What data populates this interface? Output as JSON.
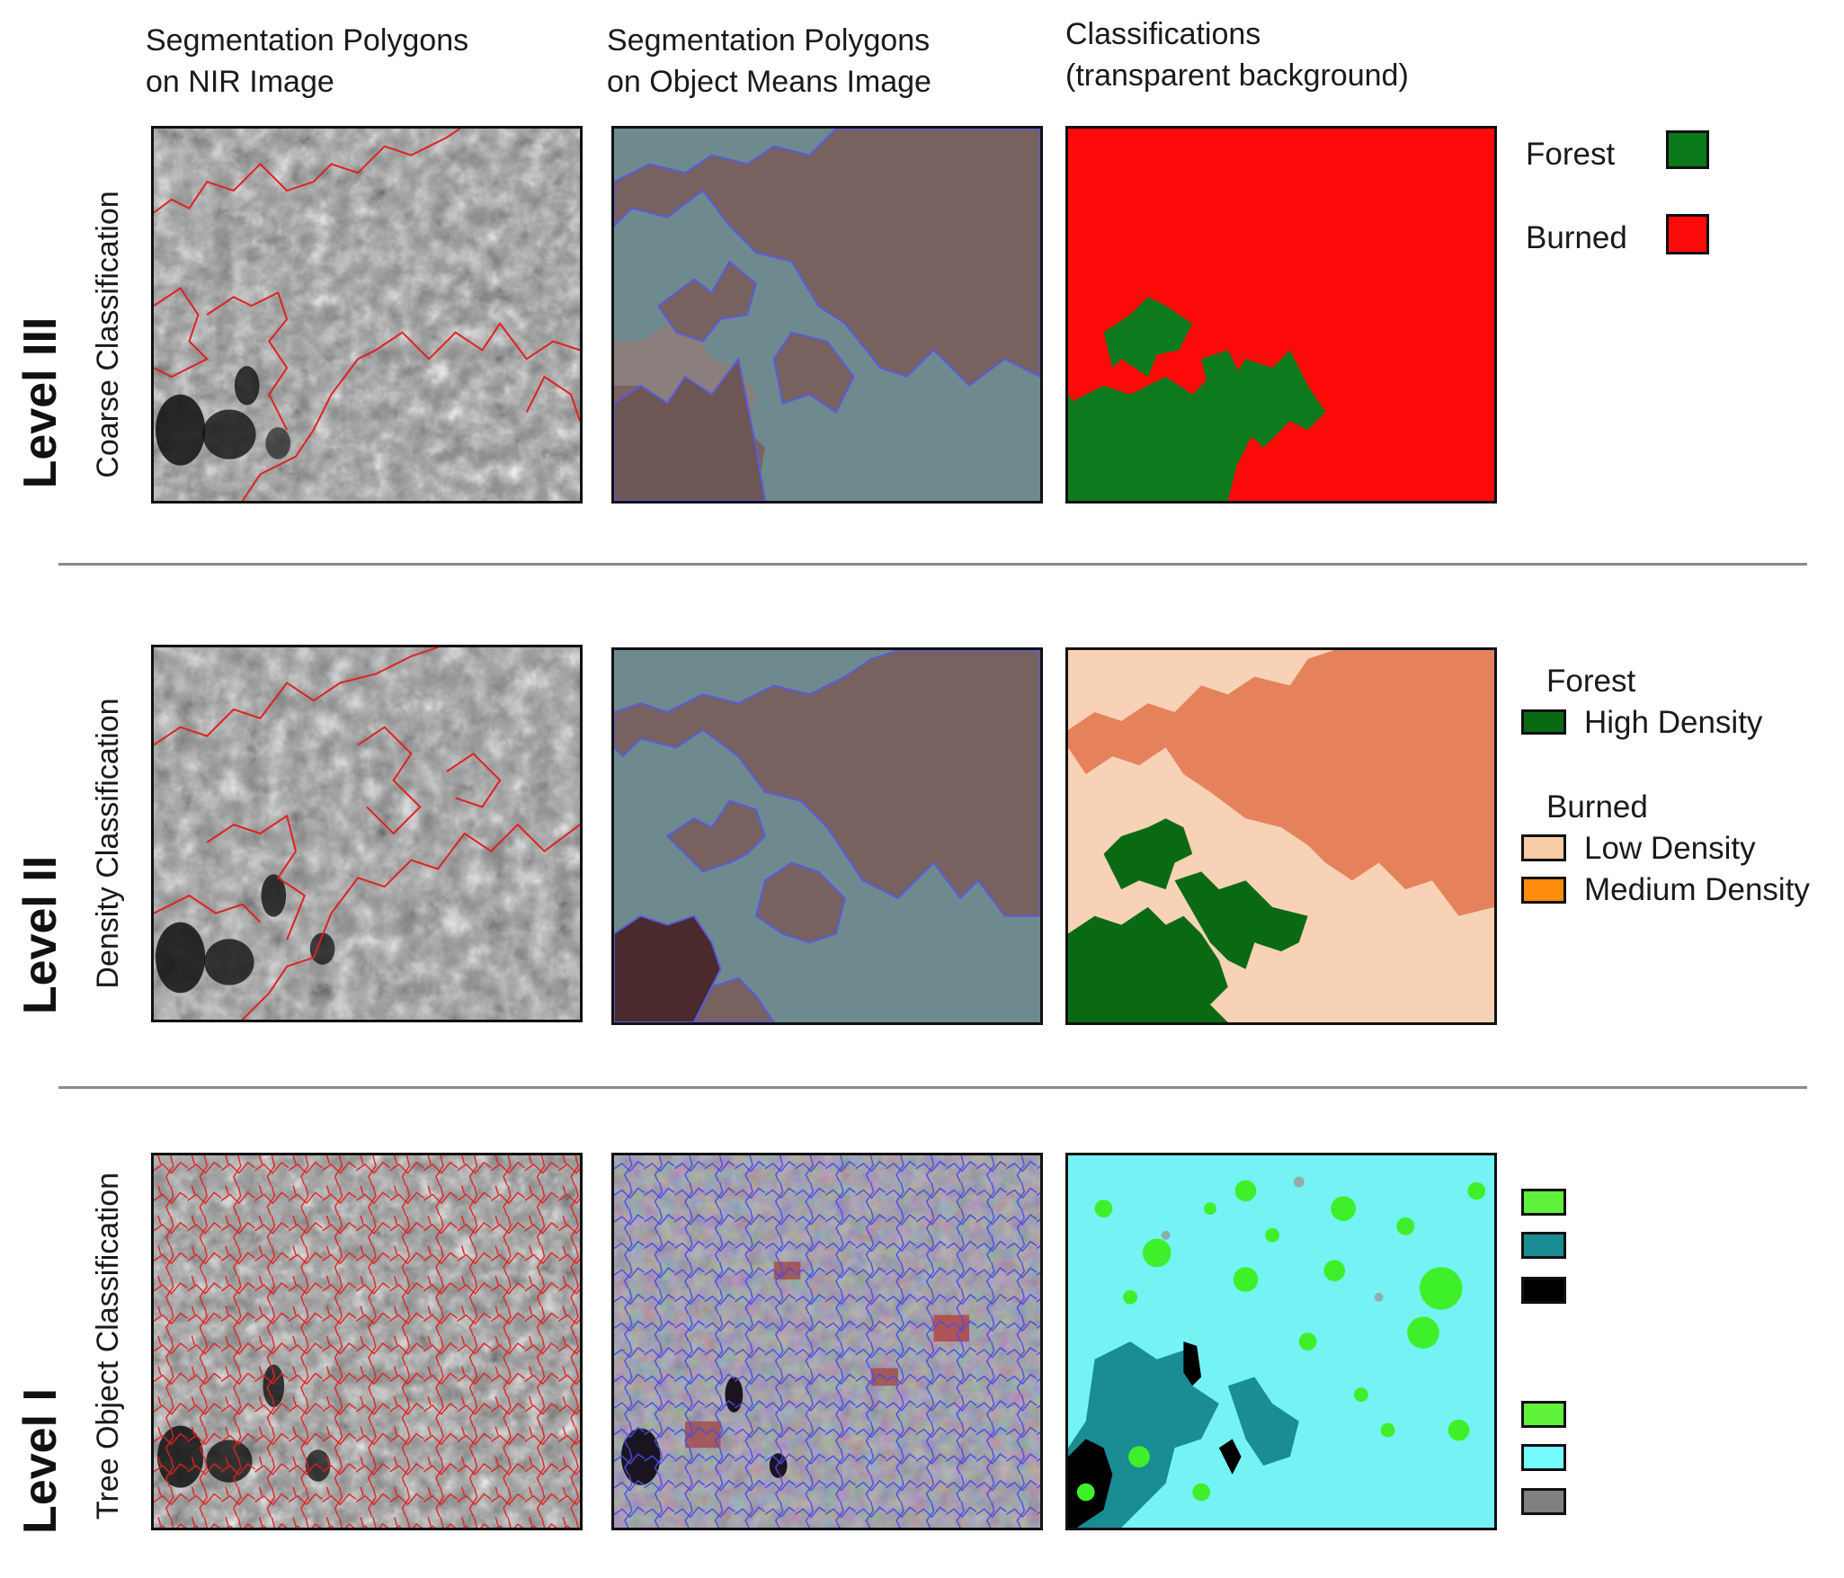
{
  "columns": [
    {
      "line1": "Segmentation Polygons",
      "line2": "on NIR Image"
    },
    {
      "line1": "Segmentation Polygons",
      "line2": "on Object Means Image"
    },
    {
      "line1": "Classifications",
      "line2": "(transparent background)"
    }
  ],
  "rows": [
    {
      "level": "Level III",
      "subtitle": "Coarse Classification"
    },
    {
      "level": "Level II",
      "subtitle": "Density Classification"
    },
    {
      "level": "Level I",
      "subtitle": "Tree Object Classification"
    }
  ],
  "legend_level3": [
    {
      "label": "Forest",
      "color": "#0a7a1a"
    },
    {
      "label": "Burned",
      "color": "#ff0a0a"
    }
  ],
  "legend_level2": {
    "forest_heading": "Forest",
    "forest_items": [
      {
        "label": "High Density",
        "color": "#0a6a14"
      }
    ],
    "burned_heading": "Burned",
    "burned_items": [
      {
        "label": "Low Density",
        "color": "#f7cba6"
      },
      {
        "label": "Medium Density",
        "color": "#ff8c0a"
      }
    ]
  },
  "legend_level1_colors": [
    "#5ef23a",
    "#1a8c94",
    "#000000",
    "#5ef23a",
    "#74fbff",
    "#808080"
  ]
}
